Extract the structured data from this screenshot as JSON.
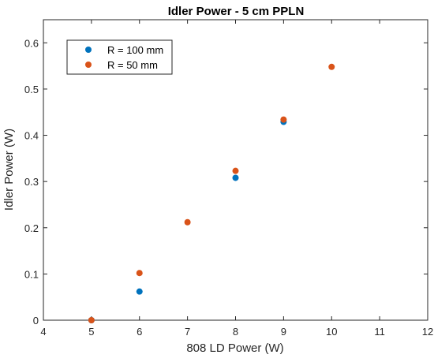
{
  "chart_data": {
    "type": "scatter",
    "title": "Idler Power - 5 cm PPLN",
    "xlabel": "808 LD Power (W)",
    "ylabel": "Idler Power (W)",
    "xlim": [
      4,
      12
    ],
    "ylim": [
      0,
      0.65
    ],
    "xticks": [
      4,
      5,
      6,
      7,
      8,
      9,
      10,
      11,
      12
    ],
    "yticks": [
      0,
      0.1,
      0.2,
      0.3,
      0.4,
      0.5,
      0.6
    ],
    "xtick_labels": [
      "4",
      "5",
      "6",
      "7",
      "8",
      "9",
      "10",
      "11",
      "12"
    ],
    "ytick_labels": [
      "0",
      "0.1",
      "0.2",
      "0.3",
      "0.4",
      "0.5",
      "0.6"
    ],
    "grid": false,
    "legend_position": "top-left",
    "series": [
      {
        "name": "R = 100 mm",
        "color": "#0072BD",
        "points": [
          {
            "x": 5,
            "y": 0.0
          },
          {
            "x": 6,
            "y": 0.062
          },
          {
            "x": 8,
            "y": 0.308
          },
          {
            "x": 9,
            "y": 0.429
          }
        ]
      },
      {
        "name": "R = 50 mm",
        "color": "#D95319",
        "points": [
          {
            "x": 5,
            "y": 0.0
          },
          {
            "x": 6,
            "y": 0.102
          },
          {
            "x": 7,
            "y": 0.212
          },
          {
            "x": 8,
            "y": 0.323
          },
          {
            "x": 9,
            "y": 0.434
          },
          {
            "x": 10,
            "y": 0.548
          }
        ]
      }
    ]
  }
}
